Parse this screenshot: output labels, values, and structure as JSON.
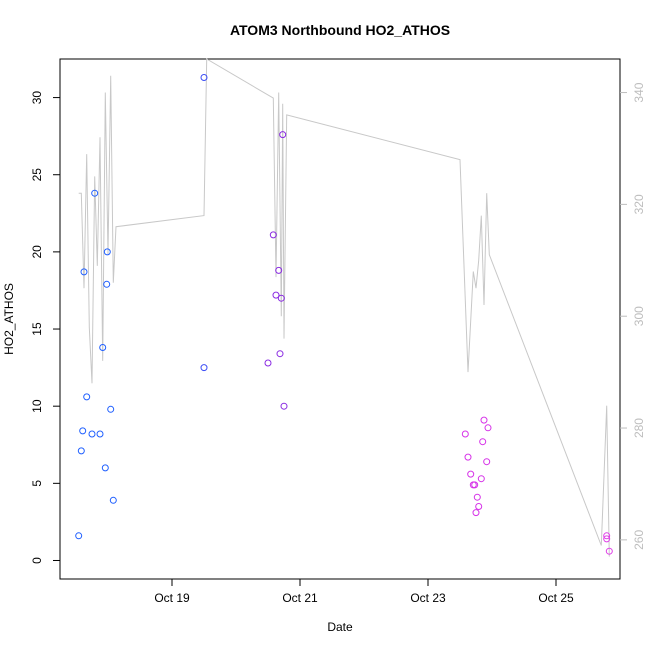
{
  "chart_data": {
    "type": "scatter",
    "title": "ATOM3 Northbound HO2_ATHOS",
    "xlabel": "Date",
    "ylabel": "HO2_ATHOS",
    "x_ticks": [
      "Oct 19",
      "Oct 21",
      "Oct 23",
      "Oct 25"
    ],
    "y_ticks": [
      "0",
      "5",
      "10",
      "15",
      "20",
      "25",
      "30"
    ],
    "y2_ticks": [
      "260",
      "280",
      "300",
      "320",
      "340"
    ],
    "xlim": [
      "2016-10-17 06:00",
      "2016-10-26 00:00"
    ],
    "ylim": [
      -1.2,
      32.5
    ],
    "y2lim": [
      253,
      346
    ],
    "colors": {
      "early": "#1f5fff",
      "mid": "#8a2be2",
      "late": "#d633e8",
      "line": "#c8c8c8"
    },
    "series": [
      {
        "style": "points",
        "points": [
          {
            "x": "2016-10-17 13:00",
            "y": 1.6,
            "color": "#1f5fff"
          },
          {
            "x": "2016-10-17 14:00",
            "y": 7.1,
            "color": "#1f5fff"
          },
          {
            "x": "2016-10-17 14:30",
            "y": 8.4,
            "color": "#1f5fff"
          },
          {
            "x": "2016-10-17 15:00",
            "y": 18.7,
            "color": "#1f5fff"
          },
          {
            "x": "2016-10-17 16:00",
            "y": 10.6,
            "color": "#1f5fff"
          },
          {
            "x": "2016-10-17 18:00",
            "y": 8.2,
            "color": "#1f5fff"
          },
          {
            "x": "2016-10-17 19:00",
            "y": 23.8,
            "color": "#1f5fff"
          },
          {
            "x": "2016-10-17 21:00",
            "y": 8.2,
            "color": "#1f5fff"
          },
          {
            "x": "2016-10-17 22:00",
            "y": 13.8,
            "color": "#1f5fff"
          },
          {
            "x": "2016-10-17 23:00",
            "y": 6.0,
            "color": "#1f5fff"
          },
          {
            "x": "2016-10-17 23:30",
            "y": 17.9,
            "color": "#1f5fff"
          },
          {
            "x": "2016-10-17 23:45",
            "y": 20.0,
            "color": "#1f5fff"
          },
          {
            "x": "2016-10-18 01:00",
            "y": 9.8,
            "color": "#1f5fff"
          },
          {
            "x": "2016-10-18 02:00",
            "y": 3.9,
            "color": "#1f5fff"
          },
          {
            "x": "2016-10-19 12:00",
            "y": 31.3,
            "color": "#3b4cf5"
          },
          {
            "x": "2016-10-19 12:00",
            "y": 12.5,
            "color": "#3b4cf5"
          },
          {
            "x": "2016-10-20 12:00",
            "y": 12.8,
            "color": "#8a2be2"
          },
          {
            "x": "2016-10-20 14:00",
            "y": 21.1,
            "color": "#8a2be2"
          },
          {
            "x": "2016-10-20 15:00",
            "y": 17.2,
            "color": "#8a2be2"
          },
          {
            "x": "2016-10-20 16:00",
            "y": 18.8,
            "color": "#8a2be2"
          },
          {
            "x": "2016-10-20 16:30",
            "y": 13.4,
            "color": "#8a2be2"
          },
          {
            "x": "2016-10-20 17:00",
            "y": 17.0,
            "color": "#8a2be2"
          },
          {
            "x": "2016-10-20 17:30",
            "y": 27.6,
            "color": "#8a2be2"
          },
          {
            "x": "2016-10-20 18:00",
            "y": 10.0,
            "color": "#8a2be2"
          },
          {
            "x": "2016-10-23 14:00",
            "y": 8.2,
            "color": "#d633e8"
          },
          {
            "x": "2016-10-23 15:00",
            "y": 6.7,
            "color": "#d633e8"
          },
          {
            "x": "2016-10-23 16:00",
            "y": 5.6,
            "color": "#d633e8"
          },
          {
            "x": "2016-10-23 17:00",
            "y": 4.9,
            "color": "#d633e8"
          },
          {
            "x": "2016-10-23 17:30",
            "y": 4.9,
            "color": "#d633e8"
          },
          {
            "x": "2016-10-23 18:00",
            "y": 3.1,
            "color": "#d633e8"
          },
          {
            "x": "2016-10-23 18:30",
            "y": 4.1,
            "color": "#d633e8"
          },
          {
            "x": "2016-10-23 19:00",
            "y": 3.5,
            "color": "#d633e8"
          },
          {
            "x": "2016-10-23 20:00",
            "y": 5.3,
            "color": "#d633e8"
          },
          {
            "x": "2016-10-23 20:30",
            "y": 7.7,
            "color": "#d633e8"
          },
          {
            "x": "2016-10-23 21:00",
            "y": 9.1,
            "color": "#d633e8"
          },
          {
            "x": "2016-10-23 22:00",
            "y": 6.4,
            "color": "#d633e8"
          },
          {
            "x": "2016-10-23 22:30",
            "y": 8.6,
            "color": "#d633e8"
          },
          {
            "x": "2016-10-25 19:00",
            "y": 1.6,
            "color": "#e040e8"
          },
          {
            "x": "2016-10-25 19:00",
            "y": 1.4,
            "color": "#e040e8"
          },
          {
            "x": "2016-10-25 20:00",
            "y": 0.6,
            "color": "#e040e8"
          }
        ]
      },
      {
        "style": "line",
        "axis": "right",
        "points": [
          {
            "x": "2016-10-17 13:00",
            "y": 322
          },
          {
            "x": "2016-10-17 14:00",
            "y": 322
          },
          {
            "x": "2016-10-17 15:00",
            "y": 305
          },
          {
            "x": "2016-10-17 16:00",
            "y": 329
          },
          {
            "x": "2016-10-17 17:00",
            "y": 298
          },
          {
            "x": "2016-10-17 18:00",
            "y": 288
          },
          {
            "x": "2016-10-17 19:00",
            "y": 325
          },
          {
            "x": "2016-10-17 20:00",
            "y": 309
          },
          {
            "x": "2016-10-17 21:00",
            "y": 332
          },
          {
            "x": "2016-10-17 22:00",
            "y": 292
          },
          {
            "x": "2016-10-17 23:00",
            "y": 340
          },
          {
            "x": "2016-10-18 00:00",
            "y": 311
          },
          {
            "x": "2016-10-18 01:00",
            "y": 343
          },
          {
            "x": "2016-10-18 02:00",
            "y": 306
          },
          {
            "x": "2016-10-18 03:00",
            "y": 316
          },
          {
            "x": "2016-10-19 12:00",
            "y": 318
          },
          {
            "x": "2016-10-19 13:00",
            "y": 346
          },
          {
            "x": "2016-10-20 14:00",
            "y": 339
          },
          {
            "x": "2016-10-20 15:00",
            "y": 307
          },
          {
            "x": "2016-10-20 16:00",
            "y": 340
          },
          {
            "x": "2016-10-20 17:00",
            "y": 300
          },
          {
            "x": "2016-10-20 17:30",
            "y": 338
          },
          {
            "x": "2016-10-20 18:00",
            "y": 296
          },
          {
            "x": "2016-10-20 19:00",
            "y": 336
          },
          {
            "x": "2016-10-23 12:00",
            "y": 328
          },
          {
            "x": "2016-10-23 15:00",
            "y": 290
          },
          {
            "x": "2016-10-23 17:00",
            "y": 308
          },
          {
            "x": "2016-10-23 18:00",
            "y": 305
          },
          {
            "x": "2016-10-23 19:00",
            "y": 310
          },
          {
            "x": "2016-10-23 20:00",
            "y": 318
          },
          {
            "x": "2016-10-23 21:00",
            "y": 302
          },
          {
            "x": "2016-10-23 22:00",
            "y": 322
          },
          {
            "x": "2016-10-23 23:00",
            "y": 311
          },
          {
            "x": "2016-10-25 17:00",
            "y": 259
          },
          {
            "x": "2016-10-25 19:00",
            "y": 284
          },
          {
            "x": "2016-10-25 20:00",
            "y": 257
          }
        ]
      }
    ],
    "grid": false,
    "legend": "none"
  }
}
